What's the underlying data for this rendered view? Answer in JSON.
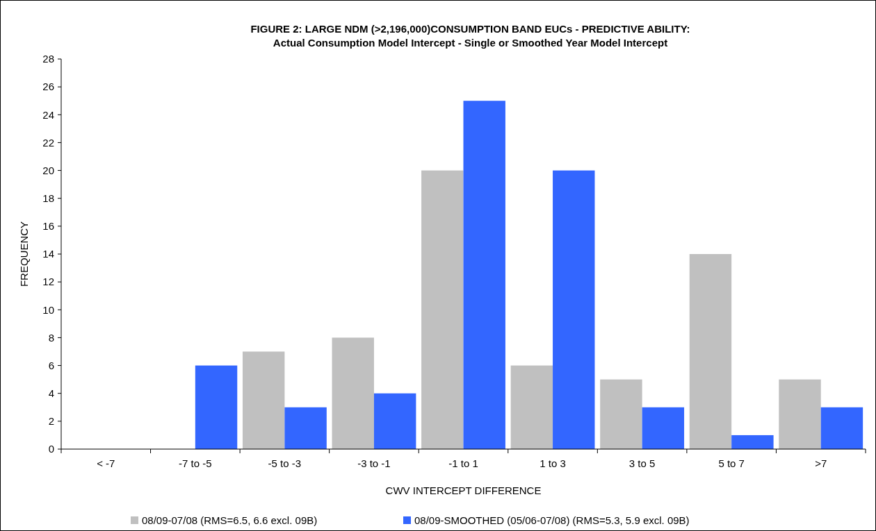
{
  "chart_data": {
    "type": "bar",
    "title": "FIGURE 2: LARGE NDM (>2,196,000)CONSUMPTION BAND EUCs - PREDICTIVE ABILITY:\nActual Consumption Model Intercept - Single or Smoothed Year Model Intercept",
    "xlabel": "CWV INTERCEPT DIFFERENCE",
    "ylabel": "FREQUENCY",
    "categories": [
      "< -7",
      "-7 to -5",
      "-5 to -3",
      "-3 to -1",
      "-1 to 1",
      "1 to 3",
      "3 to 5",
      "5 to 7",
      ">7"
    ],
    "series": [
      {
        "name": "08/09-07/08 (RMS=6.5, 6.6 excl. 09B)",
        "color": "#c0c0c0",
        "values": [
          0,
          0,
          7,
          8,
          20,
          6,
          5,
          14,
          5
        ]
      },
      {
        "name": "08/09-SMOOTHED (05/06-07/08) (RMS=5.3, 5.9 excl. 09B)",
        "color": "#3366ff",
        "values": [
          0,
          6,
          3,
          4,
          25,
          20,
          3,
          1,
          3
        ]
      }
    ],
    "ylim": [
      0,
      28
    ],
    "yticks": [
      0,
      2,
      4,
      6,
      8,
      10,
      12,
      14,
      16,
      18,
      20,
      22,
      24,
      26,
      28
    ],
    "grid": false,
    "legend": "bottom"
  }
}
